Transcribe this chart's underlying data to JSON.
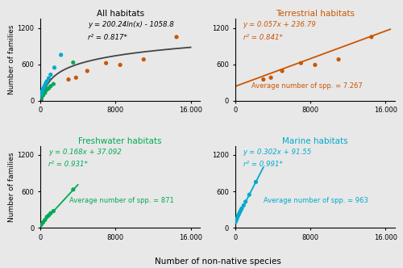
{
  "title_all": "All habitats",
  "title_terrestrial": "Terrestrial habitats",
  "title_freshwater": "Freshwater habitats",
  "title_marine": "Marine habitats",
  "color_terrestrial": "#CC5500",
  "color_freshwater": "#00AA55",
  "color_marine": "#00AACC",
  "color_all_line": "#444444",
  "eq_all": "y = 200.24ln(x) - 1058.8",
  "r2_all": "r² = 0.817*",
  "eq_terrestrial": "y = 0.057x + 236.79",
  "r2_terrestrial": "r² = 0.841*",
  "eq_freshwater": "y = 0.168x + 37.092",
  "r2_freshwater": "r² = 0.931*",
  "eq_marine": "y = 0.302x + 91.55",
  "r2_marine": "r² = 0.991*",
  "avg_terrestrial": "Average number of spp. = 7.267",
  "avg_freshwater": "Average number of spp. = 871",
  "avg_marine": "Average number of spp. = 963",
  "xlabel": "Number of non-native species",
  "ylabel": "Number of families",
  "terrestrial_x": [
    3000,
    3800,
    5000,
    7000,
    8500,
    11000,
    14500
  ],
  "terrestrial_y": [
    350,
    380,
    490,
    620,
    590,
    680,
    1050
  ],
  "freshwater_x": [
    100,
    300,
    500,
    700,
    900,
    1100,
    1400,
    3500
  ],
  "freshwater_y": [
    50,
    90,
    130,
    180,
    205,
    240,
    275,
    630
  ],
  "marine_x": [
    50,
    100,
    200,
    300,
    400,
    500,
    600,
    700,
    900,
    1100,
    1500,
    2200
  ],
  "marine_y": [
    100,
    120,
    155,
    195,
    225,
    260,
    290,
    320,
    370,
    430,
    545,
    755
  ],
  "all_terrestrial_x": [
    3000,
    3800,
    5000,
    7000,
    8500,
    11000,
    14500
  ],
  "all_terrestrial_y": [
    350,
    380,
    490,
    620,
    590,
    680,
    1050
  ],
  "all_freshwater_x": [
    100,
    300,
    500,
    700,
    900,
    1100,
    1400,
    3500
  ],
  "all_freshwater_y": [
    50,
    90,
    130,
    180,
    205,
    240,
    275,
    630
  ],
  "all_marine_x": [
    50,
    100,
    200,
    300,
    400,
    500,
    600,
    700,
    900,
    1100,
    1500,
    2200
  ],
  "all_marine_y": [
    100,
    120,
    155,
    195,
    225,
    260,
    290,
    320,
    370,
    430,
    545,
    755
  ],
  "bg_color": "#E8E8E8",
  "xticks": [
    0,
    8000,
    16000
  ],
  "xticklabels": [
    "0",
    "8000",
    "16.000"
  ],
  "yticks": [
    0,
    600,
    1200
  ],
  "yticklabels": [
    "0",
    "600",
    "1200"
  ],
  "xlim": [
    0,
    17000
  ],
  "ylim": [
    0,
    1350
  ]
}
